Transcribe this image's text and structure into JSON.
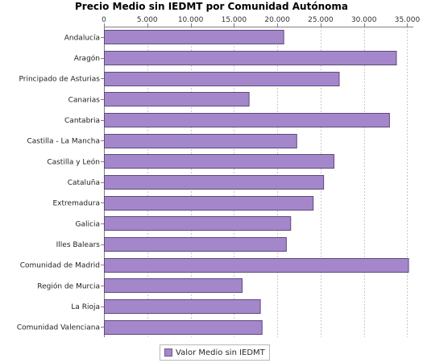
{
  "chart_data": {
    "type": "bar",
    "orientation": "horizontal",
    "title": "Precio Medio sin IEDMT por Comunidad Autónoma",
    "categories": [
      "Andalucía",
      "Aragón",
      "Principado de Asturias",
      "Canarias",
      "Cantabria",
      "Castilla - La Mancha",
      "Castilla y León",
      "Cataluña",
      "Extremadura",
      "Galicia",
      "Illes Balears",
      "Comunidad de Madrid",
      "Región de Murcia",
      "La Rioja",
      "Comunidad Valenciana"
    ],
    "series": [
      {
        "name": "Valor Medio sin IEDMT",
        "values": [
          20700,
          33700,
          27100,
          16700,
          32900,
          22200,
          26500,
          25300,
          24100,
          21500,
          21000,
          35100,
          15900,
          18000,
          18200
        ]
      }
    ],
    "xlim": [
      0,
      35700
    ],
    "xticks": [
      0,
      5000,
      10000,
      15000,
      20000,
      25000,
      30000,
      35000
    ],
    "xtick_labels": [
      "0",
      "5.000",
      "10.000",
      "15.000",
      "20.000",
      "25.000",
      "30.000",
      "35.000"
    ],
    "axis_position": "top",
    "grid": true,
    "legend_position": "bottom"
  },
  "colors": {
    "bar": "#a487cb",
    "bar_border": "#5c4a7a",
    "grid": "#c8c8c8",
    "axis": "#808080"
  }
}
